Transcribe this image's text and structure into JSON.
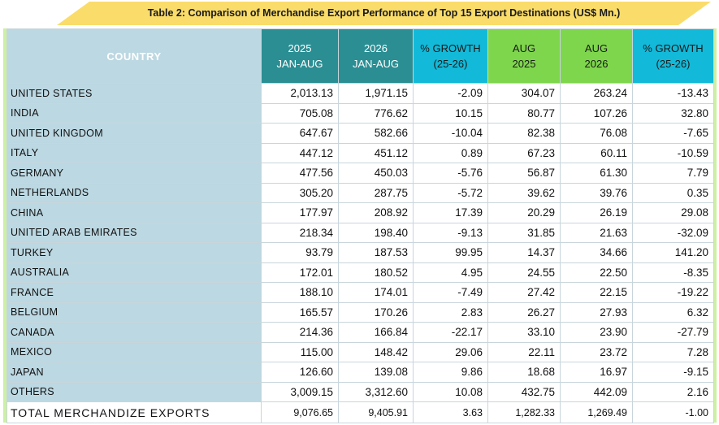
{
  "title": "Table 2: Comparison of Merchandise Export Performance of Top 15 Export Destinations (US$ Mn.)",
  "colors": {
    "banner": "#fadc6a",
    "country_bg": "#bcd8e2",
    "ytd_header": "#2a8e93",
    "growth_header": "#13b9d8",
    "aug_header": "#7ed64c",
    "frame": "#ccf0a4"
  },
  "headers": {
    "country": "COUNTRY",
    "ytd_2025": [
      "2025",
      "JAN-AUG"
    ],
    "ytd_2026": [
      "2026",
      "JAN-AUG"
    ],
    "growth_ytd": [
      "% GROWTH",
      "(25-26)"
    ],
    "aug_2025": [
      "AUG",
      "2025"
    ],
    "aug_2026": [
      "AUG",
      "2026"
    ],
    "growth_aug": [
      "% GROWTH",
      "(25-26)"
    ]
  },
  "rows": [
    [
      "UNITED STATES",
      "2,013.13",
      "1,971.15",
      "-2.09",
      "304.07",
      "263.24",
      "-13.43"
    ],
    [
      "INDIA",
      "705.08",
      "776.62",
      "10.15",
      "80.77",
      "107.26",
      "32.80"
    ],
    [
      "UNITED KINGDOM",
      "647.67",
      "582.66",
      "-10.04",
      "82.38",
      "76.08",
      "-7.65"
    ],
    [
      "ITALY",
      "447.12",
      "451.12",
      "0.89",
      "67.23",
      "60.11",
      "-10.59"
    ],
    [
      "GERMANY",
      "477.56",
      "450.03",
      "-5.76",
      "56.87",
      "61.30",
      "7.79"
    ],
    [
      "NETHERLANDS",
      "305.20",
      "287.75",
      "-5.72",
      "39.62",
      "39.76",
      "0.35"
    ],
    [
      "CHINA",
      "177.97",
      "208.92",
      "17.39",
      "20.29",
      "26.19",
      "29.08"
    ],
    [
      "UNITED ARAB EMIRATES",
      "218.34",
      "198.40",
      "-9.13",
      "31.85",
      "21.63",
      "-32.09"
    ],
    [
      "TURKEY",
      "93.79",
      "187.53",
      "99.95",
      "14.37",
      "34.66",
      "141.20"
    ],
    [
      "AUSTRALIA",
      "172.01",
      "180.52",
      "4.95",
      "24.55",
      "22.50",
      "-8.35"
    ],
    [
      "FRANCE",
      "188.10",
      "174.01",
      "-7.49",
      "27.42",
      "22.15",
      "-19.22"
    ],
    [
      "BELGIUM",
      "165.57",
      "170.26",
      "2.83",
      "26.27",
      "27.93",
      "6.32"
    ],
    [
      "CANADA",
      "214.36",
      "166.84",
      "-22.17",
      "33.10",
      "23.90",
      "-27.79"
    ],
    [
      "MEXICO",
      "115.00",
      "148.42",
      "29.06",
      "22.11",
      "23.72",
      "7.28"
    ],
    [
      "JAPAN",
      "126.60",
      "139.08",
      "9.86",
      "18.68",
      "16.97",
      "-9.15"
    ],
    [
      "OTHERS",
      "3,009.15",
      "3,312.60",
      "10.08",
      "432.75",
      "442.09",
      "2.16"
    ]
  ],
  "total": [
    "TOTAL  MERCHANDIZE EXPORTS",
    "9,076.65",
    "9,405.91",
    "3.63",
    "1,282.33",
    "1,269.49",
    "-1.00"
  ]
}
